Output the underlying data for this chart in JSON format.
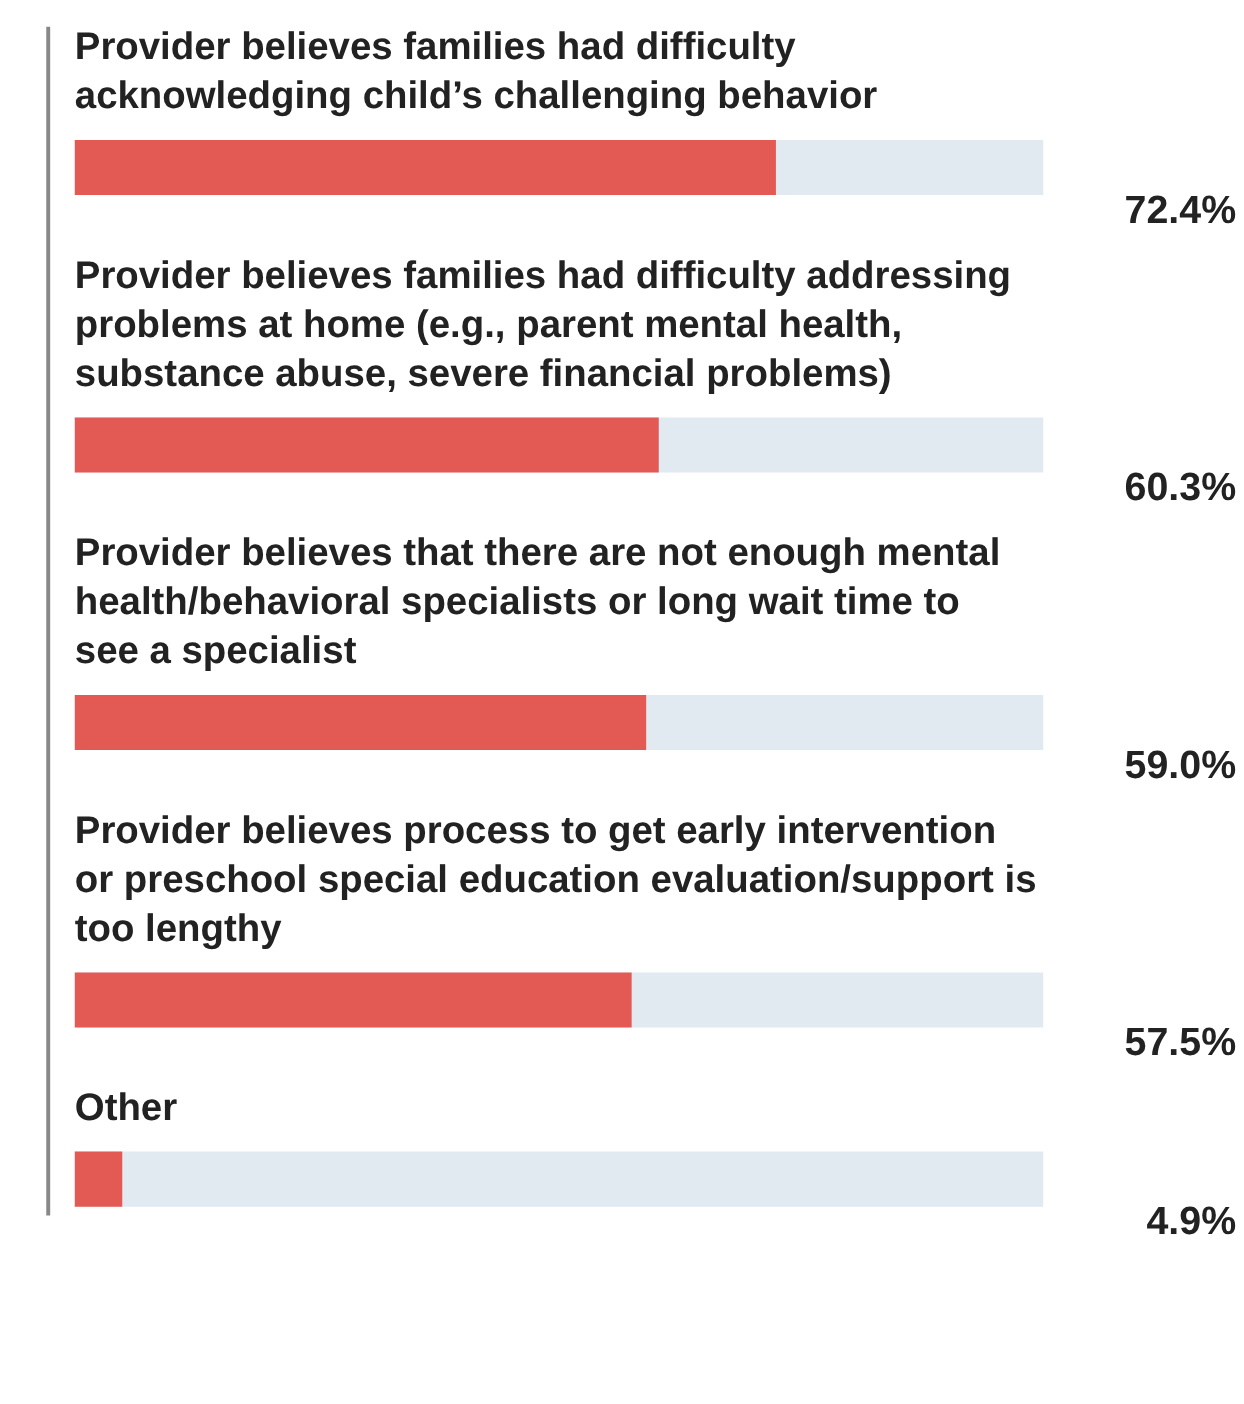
{
  "chart_data": {
    "type": "bar",
    "orientation": "horizontal",
    "categories": [
      "Provider believes families had difficulty acknowledging child’s challenging behavior",
      "Provider believes families had difficulty addressing problems at home (e.g., parent mental health, substance abuse, severe financial problems)",
      "Provider believes that there are not enough mental health/behavioral specialists or long wait time to see a specialist",
      "Provider believes  process to get early intervention or preschool special education evaluation/support is too lengthy",
      "Other"
    ],
    "values": [
      72.4,
      60.3,
      59.0,
      57.5,
      4.9
    ],
    "value_labels": [
      "72.4%",
      "60.3%",
      "59.0%",
      "57.5%",
      "4.9%"
    ],
    "color": "#e35a55",
    "xlim": [
      0,
      100
    ],
    "bands": [
      {
        "axis": "x",
        "from": 0,
        "to": 100,
        "color": "#e1e9f1"
      }
    ]
  }
}
